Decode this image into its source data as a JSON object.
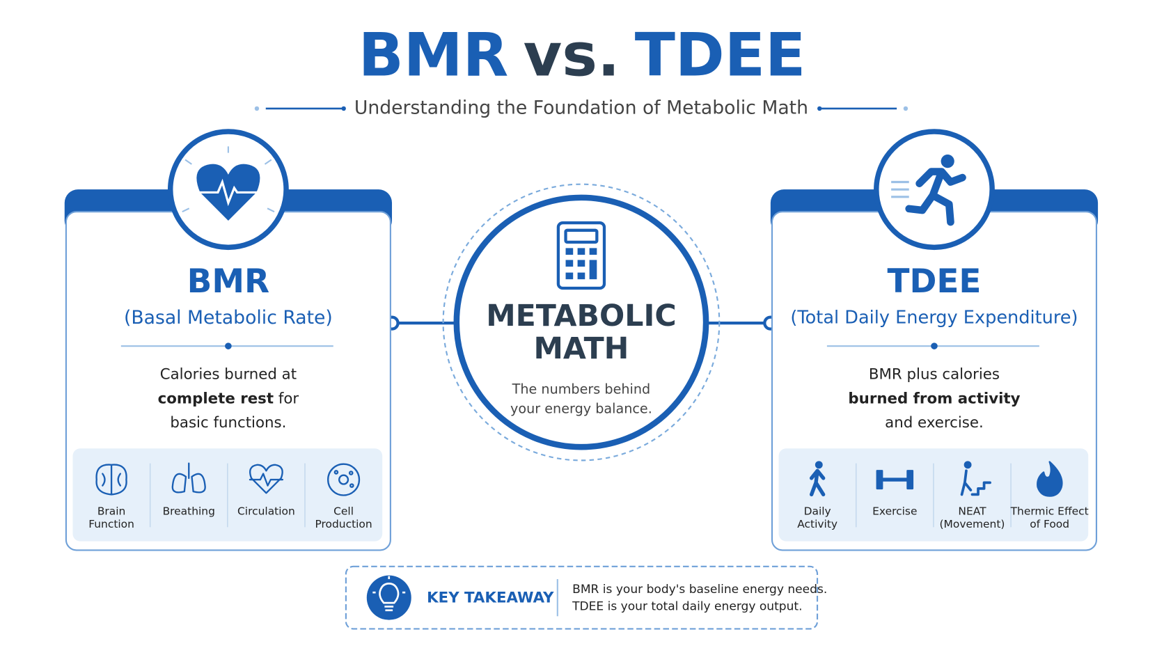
{
  "header": {
    "title_left": "BMR",
    "title_mid": "vs.",
    "title_right": "TDEE",
    "subtitle": "Understanding the Foundation of Metabolic Math"
  },
  "cards": [
    {
      "title": "BMR",
      "subtitle": "(Basal Metabolic Rate)",
      "description": [
        [
          {
            "text": "Calories burned at",
            "bold": false
          }
        ],
        [
          {
            "text": "complete rest",
            "bold": true
          },
          {
            "text": " for",
            "bold": false
          }
        ],
        [
          {
            "text": "basic functions.",
            "bold": false
          }
        ]
      ],
      "items": [
        [
          "Brain",
          "Function"
        ],
        [
          "Breathing"
        ],
        [
          "Circulation"
        ],
        [
          "Cell",
          "Production"
        ]
      ]
    },
    {
      "title": "TDEE",
      "subtitle": "(Total Daily Energy Expenditure)",
      "description": [
        [
          {
            "text": "BMR plus calories",
            "bold": false
          }
        ],
        [
          {
            "text": "burned from activity",
            "bold": true
          }
        ],
        [
          {
            "text": "and exercise.",
            "bold": false
          }
        ]
      ],
      "items": [
        [
          "Daily",
          "Activity"
        ],
        [
          "Exercise"
        ],
        [
          "NEAT",
          "(Movement)"
        ],
        [
          "Thermic Effect",
          "of Food"
        ]
      ]
    }
  ],
  "center": {
    "title_lines": [
      "METABOLIC",
      "MATH"
    ],
    "text_lines": [
      "The numbers behind",
      "your energy balance."
    ]
  },
  "takeaway": {
    "label": "KEY TAKEAWAY",
    "lines": [
      "BMR is your body's baseline energy needs.",
      "TDEE is your total daily energy output."
    ]
  }
}
